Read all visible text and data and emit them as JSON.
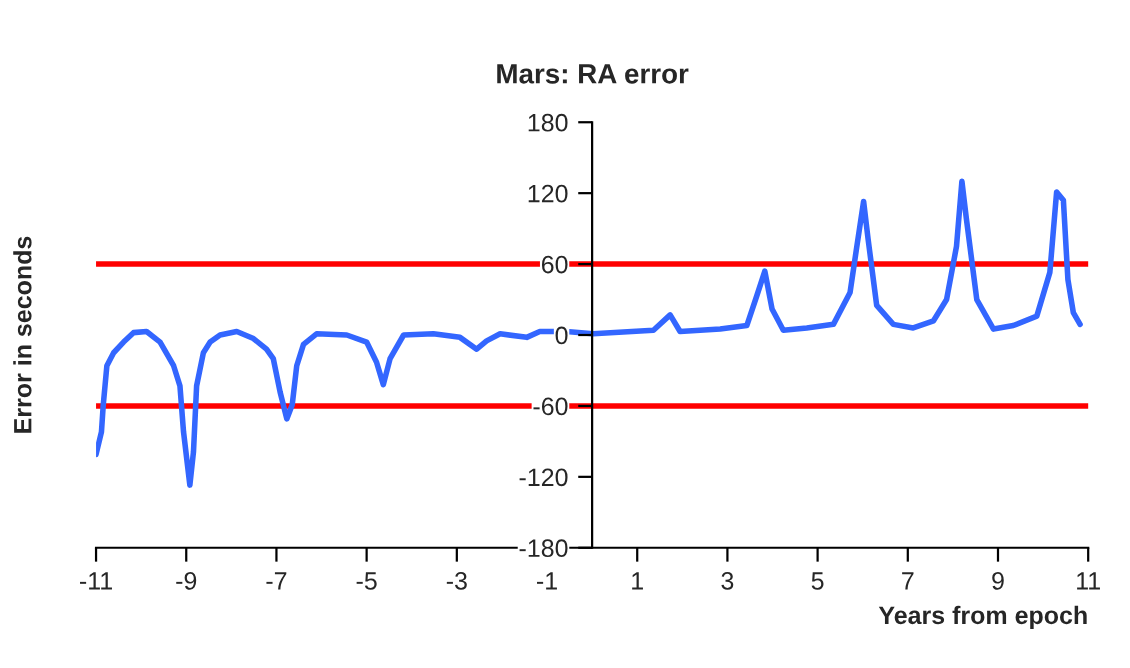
{
  "chart_data": {
    "type": "line",
    "title": "Mars: RA error",
    "xlabel": "Years from epoch",
    "ylabel": "Error in seconds",
    "xlim": [
      -11,
      11
    ],
    "xticks": [
      -11,
      -9,
      -7,
      -5,
      -3,
      -1,
      1,
      3,
      5,
      7,
      9,
      11
    ],
    "ylim": [
      -180,
      180
    ],
    "yticks": [
      -180,
      -120,
      -60,
      0,
      60,
      120,
      180
    ],
    "grid": false,
    "legend": false,
    "marker": "none",
    "line_style": "solid",
    "x": [
      -11,
      -10.88,
      -10.84,
      -10.76,
      -10.61,
      -10.39,
      -10.17,
      -9.88,
      -9.58,
      -9.28,
      -9.14,
      -9.06,
      -8.92,
      -8.84,
      -8.77,
      -8.62,
      -8.47,
      -8.25,
      -7.88,
      -7.51,
      -7.22,
      -7.07,
      -6.92,
      -6.77,
      -6.65,
      -6.55,
      -6.4,
      -6.11,
      -5.44,
      -5.0,
      -4.78,
      -4.63,
      -4.48,
      -4.18,
      -3.52,
      -2.93,
      -2.56,
      -2.34,
      -2.04,
      -1.45,
      -1.16,
      -0.57,
      0.02,
      1.36,
      1.73,
      1.95,
      2.84,
      3.43,
      3.65,
      3.83,
      3.99,
      4.24,
      4.76,
      5.35,
      5.72,
      5.87,
      6.02,
      6.12,
      6.31,
      6.68,
      7.12,
      7.57,
      7.86,
      8.08,
      8.2,
      8.3,
      8.53,
      8.9,
      9.34,
      9.86,
      10.15,
      10.3,
      10.45,
      10.55,
      10.67,
      10.82
    ],
    "series": [
      {
        "color": "#3366ff",
        "values": [
          -101,
          -82,
          -59,
          -26,
          -15,
          -6,
          2,
          3,
          -6,
          -26,
          -43,
          -82,
          -127,
          -99,
          -43,
          -15,
          -6,
          0,
          3,
          -3,
          -12,
          -20,
          -48,
          -71,
          -59,
          -26,
          -8,
          1,
          0,
          -6,
          -23,
          -42,
          -20,
          0,
          1,
          -2,
          -12,
          -5,
          1,
          -2,
          3,
          3,
          1,
          4,
          17,
          3,
          5,
          8,
          33,
          54,
          22,
          4,
          6,
          9,
          36,
          75,
          113,
          81,
          25,
          9,
          6,
          12,
          30,
          75,
          130,
          98,
          30,
          5,
          8,
          16,
          53,
          121,
          114,
          47,
          19,
          9
        ]
      }
    ],
    "ref_lines": [
      {
        "axis": "y",
        "value": 60,
        "color": "#ff0000",
        "line_style": "solid"
      },
      {
        "axis": "y",
        "value": -60,
        "color": "#ff0000",
        "line_style": "solid"
      }
    ]
  }
}
